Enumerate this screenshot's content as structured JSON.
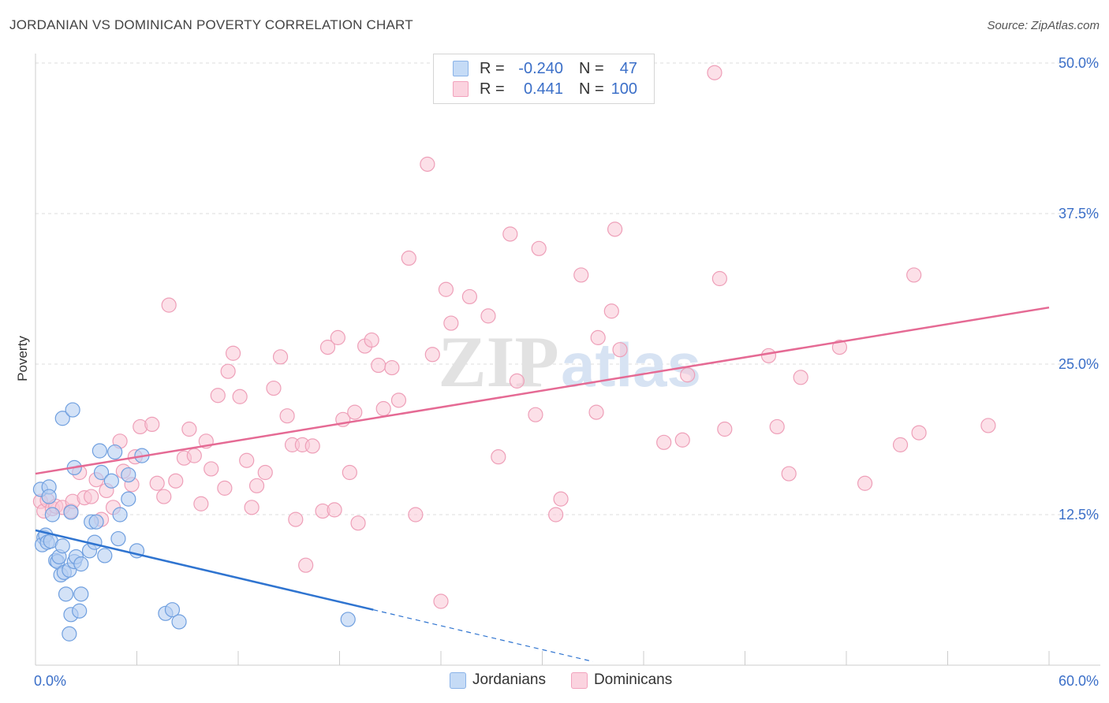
{
  "title": "JORDANIAN VS DOMINICAN POVERTY CORRELATION CHART",
  "source": "Source: ZipAtlas.com",
  "watermark": {
    "zip": "ZIP",
    "atlas": "atlas"
  },
  "legend": {
    "r_label": "R =",
    "n_label": "N =",
    "rows": [
      {
        "r": "-0.240",
        "n": "47",
        "color": "#a9c8f0"
      },
      {
        "r": "0.441",
        "n": "100",
        "color": "#f7bccd"
      }
    ]
  },
  "chart_data": {
    "type": "scatter",
    "title": "JORDANIAN VS DOMINICAN POVERTY CORRELATION CHART",
    "xlabel": "",
    "ylabel": "Poverty",
    "xlim": [
      0,
      60
    ],
    "ylim": [
      0,
      50
    ],
    "x_tick_labels": [
      "0.0%",
      "60.0%"
    ],
    "y_tick_labels": [
      "12.5%",
      "25.0%",
      "37.5%",
      "50.0%"
    ],
    "y_ticks": [
      12.5,
      25.0,
      37.5,
      50.0
    ],
    "grid": "horizontal-dashed",
    "legend_position": "bottom-center",
    "colors": {
      "jordanians": "#6fa0e0",
      "dominicans": "#f09ab5",
      "jordanians_line": "#2f74d0",
      "dominicans_line": "#e56a94",
      "axis_label": "#3b6fc8"
    },
    "series": [
      {
        "name": "Jordanians",
        "r": -0.24,
        "n": 47,
        "trend": {
          "x": [
            0,
            20
          ],
          "y": [
            11.2,
            4.6
          ],
          "dashed_extension_x": [
            20,
            33
          ],
          "dashed_extension_y": [
            4.6,
            0.3
          ]
        },
        "points": [
          [
            0.3,
            14.6
          ],
          [
            0.5,
            10.6
          ],
          [
            0.4,
            10.0
          ],
          [
            0.6,
            10.8
          ],
          [
            0.7,
            10.2
          ],
          [
            0.8,
            14.8
          ],
          [
            0.9,
            10.3
          ],
          [
            1.0,
            12.5
          ],
          [
            0.8,
            14.0
          ],
          [
            1.2,
            8.7
          ],
          [
            1.3,
            8.6
          ],
          [
            1.4,
            9.0
          ],
          [
            1.5,
            7.5
          ],
          [
            1.6,
            9.9
          ],
          [
            1.7,
            7.7
          ],
          [
            1.8,
            5.9
          ],
          [
            2.0,
            7.9
          ],
          [
            2.1,
            12.7
          ],
          [
            2.0,
            2.6
          ],
          [
            2.1,
            4.2
          ],
          [
            2.3,
            8.6
          ],
          [
            2.4,
            9.0
          ],
          [
            2.6,
            4.5
          ],
          [
            2.7,
            8.4
          ],
          [
            2.7,
            5.9
          ],
          [
            1.6,
            20.5
          ],
          [
            2.2,
            21.2
          ],
          [
            2.3,
            16.4
          ],
          [
            3.2,
            9.5
          ],
          [
            3.3,
            11.9
          ],
          [
            3.5,
            10.2
          ],
          [
            3.6,
            11.9
          ],
          [
            3.8,
            17.8
          ],
          [
            3.9,
            16.0
          ],
          [
            4.1,
            9.1
          ],
          [
            4.5,
            15.3
          ],
          [
            4.7,
            17.7
          ],
          [
            4.9,
            10.5
          ],
          [
            5.5,
            15.8
          ],
          [
            5.5,
            13.8
          ],
          [
            6.0,
            9.5
          ],
          [
            7.7,
            4.3
          ],
          [
            8.1,
            4.6
          ],
          [
            8.5,
            3.6
          ],
          [
            18.5,
            3.8
          ],
          [
            6.3,
            17.4
          ],
          [
            5.0,
            12.5
          ]
        ]
      },
      {
        "name": "Dominicans",
        "r": 0.441,
        "n": 100,
        "trend": {
          "x": [
            0,
            60
          ],
          "y": [
            15.9,
            29.7
          ]
        },
        "points": [
          [
            0.3,
            13.6
          ],
          [
            0.5,
            12.8
          ],
          [
            0.7,
            13.7
          ],
          [
            1.0,
            13.0
          ],
          [
            1.2,
            13.2
          ],
          [
            1.6,
            13.1
          ],
          [
            2.1,
            12.8
          ],
          [
            2.2,
            13.6
          ],
          [
            2.6,
            16.0
          ],
          [
            2.9,
            13.9
          ],
          [
            3.3,
            14.0
          ],
          [
            3.6,
            15.4
          ],
          [
            3.9,
            12.1
          ],
          [
            4.2,
            14.5
          ],
          [
            4.6,
            13.1
          ],
          [
            5.0,
            18.6
          ],
          [
            5.2,
            16.1
          ],
          [
            5.7,
            15.0
          ],
          [
            5.9,
            17.3
          ],
          [
            6.2,
            19.8
          ],
          [
            6.9,
            20.0
          ],
          [
            7.2,
            15.1
          ],
          [
            7.6,
            14.0
          ],
          [
            7.9,
            29.9
          ],
          [
            8.3,
            15.3
          ],
          [
            8.8,
            17.2
          ],
          [
            9.1,
            19.6
          ],
          [
            9.4,
            17.4
          ],
          [
            9.8,
            13.4
          ],
          [
            10.1,
            18.6
          ],
          [
            10.4,
            16.3
          ],
          [
            10.8,
            22.4
          ],
          [
            11.2,
            14.7
          ],
          [
            11.4,
            24.4
          ],
          [
            11.7,
            25.9
          ],
          [
            12.1,
            22.3
          ],
          [
            12.5,
            17.0
          ],
          [
            12.8,
            13.1
          ],
          [
            13.1,
            14.9
          ],
          [
            13.6,
            16.0
          ],
          [
            14.1,
            23.0
          ],
          [
            14.5,
            25.6
          ],
          [
            14.9,
            20.7
          ],
          [
            15.2,
            18.3
          ],
          [
            15.4,
            12.1
          ],
          [
            15.8,
            18.3
          ],
          [
            16.0,
            8.3
          ],
          [
            16.4,
            18.2
          ],
          [
            17.0,
            12.8
          ],
          [
            17.3,
            26.4
          ],
          [
            17.7,
            12.9
          ],
          [
            17.9,
            27.2
          ],
          [
            18.2,
            20.4
          ],
          [
            18.6,
            16.0
          ],
          [
            18.9,
            21.0
          ],
          [
            19.1,
            11.8
          ],
          [
            19.5,
            26.5
          ],
          [
            19.9,
            27.0
          ],
          [
            20.3,
            24.9
          ],
          [
            20.6,
            21.3
          ],
          [
            21.1,
            24.7
          ],
          [
            21.5,
            22.0
          ],
          [
            22.1,
            33.8
          ],
          [
            22.5,
            12.5
          ],
          [
            23.2,
            41.6
          ],
          [
            23.5,
            25.8
          ],
          [
            24.0,
            5.3
          ],
          [
            24.3,
            31.2
          ],
          [
            24.6,
            28.4
          ],
          [
            25.7,
            30.6
          ],
          [
            26.8,
            29.0
          ],
          [
            27.4,
            17.3
          ],
          [
            28.1,
            35.8
          ],
          [
            28.5,
            23.6
          ],
          [
            29.6,
            20.8
          ],
          [
            29.8,
            34.6
          ],
          [
            30.8,
            12.5
          ],
          [
            31.1,
            13.8
          ],
          [
            32.3,
            32.4
          ],
          [
            33.2,
            21.0
          ],
          [
            33.3,
            27.2
          ],
          [
            34.1,
            29.4
          ],
          [
            34.3,
            36.2
          ],
          [
            34.6,
            26.2
          ],
          [
            37.2,
            18.5
          ],
          [
            38.3,
            18.7
          ],
          [
            38.6,
            24.1
          ],
          [
            40.2,
            49.2
          ],
          [
            40.5,
            32.1
          ],
          [
            40.8,
            19.6
          ],
          [
            43.4,
            25.7
          ],
          [
            43.9,
            19.8
          ],
          [
            44.6,
            15.9
          ],
          [
            45.3,
            23.9
          ],
          [
            47.6,
            26.4
          ],
          [
            49.1,
            15.1
          ],
          [
            51.2,
            18.3
          ],
          [
            52.0,
            32.4
          ],
          [
            52.3,
            19.3
          ],
          [
            56.4,
            19.9
          ]
        ]
      }
    ]
  },
  "bottom_legend": [
    "Jordanians",
    "Dominicans"
  ]
}
